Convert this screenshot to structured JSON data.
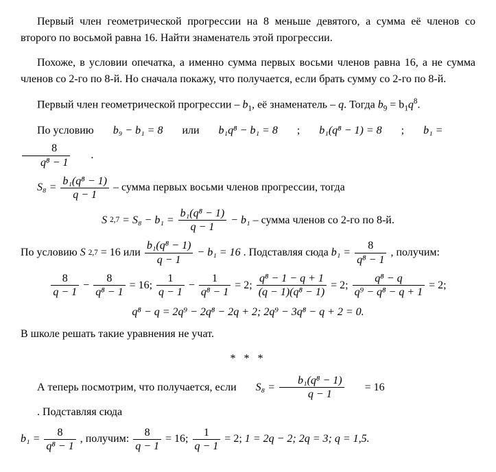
{
  "problem": {
    "statement": "Первый член геометрической прогрессии на 8 меньше девятого, а сумма её членов со второго по восьмой равна 16. Найти знаменатель этой прогрессии."
  },
  "note": {
    "text": "Похоже, в условии опечатка, а именно сумма первых восьми членов равна 16, а не сумма членов со 2-го по 8-й. Но сначала покажу, что получается, если брать сумму со 2-го по 8-й."
  },
  "p1": {
    "prefix": "Первый член геометрической прогрессии – ",
    "b1": "b",
    "b1sub": "1",
    "mid": ", её знаменатель – ",
    "q": "q",
    "then": ". Тогда ",
    "eq": "b",
    "eq_sub": "9",
    "equals": " = b",
    "eq_sub2": "1",
    "qpow": "q",
    "qpow_sup": "8",
    "dot": "."
  },
  "p2": {
    "prefix": "По условию ",
    "part1": "b₉ − b₁ = 8",
    "or1": " или ",
    "part2": "b₁q⁸ − b₁ = 8",
    "sep1": "; ",
    "part3": "b₁(q⁸ − 1) = 8",
    "sep2": "; ",
    "b1eq": "b₁ = ",
    "frac_num": "8",
    "frac_den": "q⁸ − 1",
    "dot": "."
  },
  "s8": {
    "label": "S₈ = ",
    "num": "b₁(q⁸ − 1)",
    "den": "q − 1",
    "suffix": " – сумма первых восьми членов прогрессии, тогда"
  },
  "s27": {
    "label": "S",
    "labelsub": "2,7",
    "eq": " = S₈ − b₁ = ",
    "num": "b₁(q⁸ − 1)",
    "den": "q − 1",
    "minus": " − b₁",
    "suffix": " – сумма членов со 2-го по 8-й."
  },
  "p3": {
    "prefix": "По условию ",
    "s27": "S",
    "s27sub": "2,7",
    "eq16": " = 16",
    "or": " или ",
    "num": "b₁(q⁸ − 1)",
    "den": "q − 1",
    "minus": " − b₁ = 16",
    "subst": ". Подставляя сюда ",
    "b1": "b₁ = ",
    "b1num": "8",
    "b1den": "q⁸ − 1",
    "get": ", получим:"
  },
  "chain": {
    "f1num": "8",
    "f1den": "q − 1",
    "minus1": " − ",
    "f2num": "8",
    "f2den": "q⁸ − 1",
    "eq1": " = 16; ",
    "f3num": "1",
    "f3den": "q − 1",
    "minus2": " − ",
    "f4num": "1",
    "f4den": "q⁸ − 1",
    "eq2": " = 2; ",
    "f5num": "q⁸ − 1 − q + 1",
    "f5den": "(q − 1)(q⁸ − 1)",
    "eq3": " = 2; ",
    "f6num": "q⁸ − q",
    "f6den": "q⁹ − q⁸ − q + 1",
    "eq4": " = 2;",
    "line2a": "q⁸ − q = 2q⁹ − 2q⁸ − 2q + 2; ",
    "line2b": "2q⁹ − 3q⁸ − q + 2 = 0."
  },
  "school": {
    "text": "В школе решать такие уравнения не учат."
  },
  "sep": "* * *",
  "p4": {
    "prefix": "А теперь посмотрим, что получается, если ",
    "s8": "S₈ = ",
    "num": "b₁(q⁸ − 1)",
    "den": "q − 1",
    "eq16": " = 16",
    "subst": ". Подставляя сюда"
  },
  "p5": {
    "b1": "b₁ = ",
    "b1num": "8",
    "b1den": "q⁸ − 1",
    "get": ", получим: ",
    "f1num": "8",
    "f1den": "q − 1",
    "eq16": " = 16; ",
    "f2num": "1",
    "f2den": "q − 1",
    "eq2": " = 2; ",
    "part3": "1 = 2q − 2; ",
    "part4": "2q = 3; ",
    "ans": "q = 1,5."
  },
  "colors": {
    "text": "#000000",
    "background": "#ffffff"
  },
  "typography": {
    "font_family": "Times New Roman",
    "body_fontsize": 16
  }
}
